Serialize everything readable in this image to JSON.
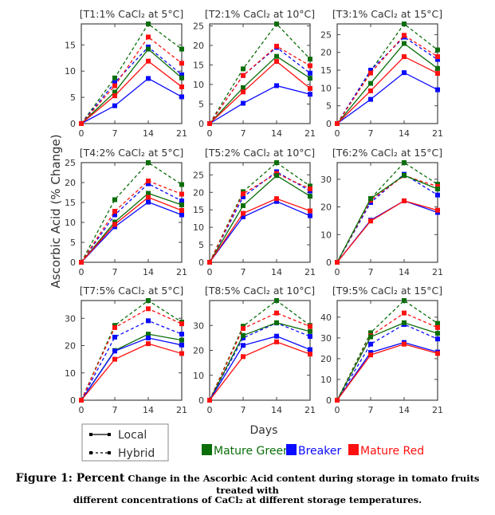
{
  "chart_data": {
    "type": "line",
    "ylabel": "Ascorbic Acid (% Change)",
    "xlabel": "Days",
    "x": [
      0,
      7,
      14,
      21
    ],
    "x_ticks": [
      "0",
      "7",
      "14",
      "21"
    ],
    "legend_styles": [
      {
        "name": "Local",
        "dash": false
      },
      {
        "name": "Hybrid",
        "dash": true
      }
    ],
    "legend_colors": [
      {
        "name": "Mature Green",
        "color": "#0a6e0a"
      },
      {
        "name": "Breaker",
        "color": "#0a0aff"
      },
      {
        "name": "Mature Red",
        "color": "#ff1010"
      }
    ],
    "panels": [
      {
        "title": "[T1:1% CaCl₂ at 5°C]",
        "ylim": [
          0,
          19
        ],
        "yticks": [
          0,
          5,
          10,
          15
        ],
        "local": {
          "Mature Green": [
            0,
            6,
            14.2,
            8.7
          ],
          "Breaker": [
            0,
            3.4,
            8.6,
            5.1
          ],
          "Mature Red": [
            0,
            5.3,
            11.9,
            7
          ]
        },
        "hybrid": {
          "Mature Green": [
            0,
            8.7,
            19,
            14.2
          ],
          "Breaker": [
            0,
            7.8,
            14.6,
            9.3
          ],
          "Mature Red": [
            0,
            7.2,
            16.5,
            11.5
          ]
        }
      },
      {
        "title": "[T2:1% CaCl₂ at 10°C]",
        "ylim": [
          0,
          25.5
        ],
        "yticks": [
          0,
          5,
          10,
          15,
          20,
          25
        ],
        "local": {
          "Mature Green": [
            0,
            9.2,
            17.2,
            11.6
          ],
          "Breaker": [
            0,
            5.2,
            9.7,
            7.5
          ],
          "Mature Red": [
            0,
            8.1,
            15.9,
            9
          ]
        },
        "hybrid": {
          "Mature Green": [
            0,
            14,
            25.5,
            16.5
          ],
          "Breaker": [
            0,
            12.3,
            19.5,
            12.9
          ],
          "Mature Red": [
            0,
            12.3,
            19.8,
            14.8
          ]
        }
      },
      {
        "title": "[T3:1% CaCl₂ at 15°C]",
        "ylim": [
          0,
          28
        ],
        "yticks": [
          0,
          5,
          10,
          15,
          20,
          25
        ],
        "local": {
          "Mature Green": [
            0,
            11.3,
            22.5,
            15.5
          ],
          "Breaker": [
            0,
            6.8,
            14.3,
            9.5
          ],
          "Mature Red": [
            0,
            9.2,
            18.8,
            14.1
          ]
        },
        "hybrid": {
          "Mature Green": [
            0,
            14.8,
            28,
            20.7
          ],
          "Breaker": [
            0,
            15,
            24.3,
            18
          ],
          "Mature Red": [
            0,
            14.2,
            24.8,
            18.8
          ]
        }
      },
      {
        "title": "[T4:2% CaCl₂ at 5°C]",
        "ylim": [
          0,
          25
        ],
        "yticks": [
          0,
          5,
          10,
          15,
          20,
          25
        ],
        "local": {
          "Mature Green": [
            0,
            10.1,
            17.3,
            14.4
          ],
          "Breaker": [
            0,
            8.9,
            15.1,
            11.9
          ],
          "Mature Red": [
            0,
            9.5,
            16.3,
            13
          ]
        },
        "hybrid": {
          "Mature Green": [
            0,
            15.7,
            25,
            19.5
          ],
          "Breaker": [
            0,
            11.9,
            19.7,
            15.4
          ],
          "Mature Red": [
            0,
            12.8,
            20.4,
            17.1
          ]
        }
      },
      {
        "title": "[T5:2% CaCl₂ at 10°C]",
        "ylim": [
          0,
          28.5
        ],
        "yticks": [
          0,
          5,
          10,
          15,
          20,
          25
        ],
        "local": {
          "Mature Green": [
            0,
            16.2,
            24.8,
            18.9
          ],
          "Breaker": [
            0,
            13,
            17.4,
            13.3
          ],
          "Mature Red": [
            0,
            14,
            18.2,
            14.7
          ]
        },
        "hybrid": {
          "Mature Green": [
            0,
            20.2,
            28.5,
            21.8
          ],
          "Breaker": [
            0,
            18.7,
            25.9,
            20.4
          ],
          "Mature Red": [
            0,
            19.6,
            25.4,
            21
          ]
        }
      },
      {
        "title": "[T6:2% CaCl₂ at 15°C]",
        "ylim": [
          0,
          36
        ],
        "yticks": [
          0,
          10,
          20,
          30
        ],
        "local": {
          "Mature Green": [
            0,
            23,
            31.4,
            26.5
          ],
          "Breaker": [
            0,
            15.2,
            22.2,
            18
          ],
          "Mature Red": [
            0,
            14.9,
            22.2,
            18.8
          ]
        },
        "hybrid": {
          "Mature Green": [
            0,
            23,
            36,
            28.2
          ],
          "Breaker": [
            0,
            21.6,
            31.8,
            24.3
          ],
          "Mature Red": [
            0,
            22.4,
            31.3,
            27.4
          ]
        }
      },
      {
        "title": "[T7:5% CaCl₂ at 5°C]",
        "ylim": [
          0,
          36.5
        ],
        "yticks": [
          0,
          10,
          20,
          30
        ],
        "local": {
          "Mature Green": [
            0,
            18.2,
            24.2,
            22
          ],
          "Breaker": [
            0,
            18,
            22.8,
            20.2
          ],
          "Mature Red": [
            0,
            15,
            20.7,
            17.1
          ]
        },
        "hybrid": {
          "Mature Green": [
            0,
            27.4,
            36.5,
            28.6
          ],
          "Breaker": [
            0,
            23.1,
            29.1,
            24.2
          ],
          "Mature Red": [
            0,
            26.6,
            33.5,
            28
          ]
        }
      },
      {
        "title": "[T8:5% CaCl₂ at 10°C]",
        "ylim": [
          0,
          40
        ],
        "yticks": [
          0,
          10,
          20,
          30
        ],
        "local": {
          "Mature Green": [
            0,
            26,
            31.1,
            27.6
          ],
          "Breaker": [
            0,
            22,
            25.7,
            20.3
          ],
          "Mature Red": [
            0,
            17.5,
            23.4,
            18.5
          ]
        },
        "hybrid": {
          "Mature Green": [
            0,
            29.7,
            40,
            30
          ],
          "Breaker": [
            0,
            25,
            31,
            25.6
          ],
          "Mature Red": [
            0,
            28.8,
            35,
            29.6
          ]
        }
      },
      {
        "title": "[T9:5% CaCl₂ at 15°C]",
        "ylim": [
          0,
          48
        ],
        "yticks": [
          0,
          10,
          20,
          30,
          40
        ],
        "local": {
          "Mature Green": [
            0,
            30.5,
            37.3,
            32.2
          ],
          "Breaker": [
            0,
            23,
            27.8,
            23.2
          ],
          "Mature Red": [
            0,
            21.8,
            27,
            22.5
          ]
        },
        "hybrid": {
          "Mature Green": [
            0,
            32.5,
            48,
            37
          ],
          "Breaker": [
            0,
            27,
            36.5,
            29.5
          ],
          "Mature Red": [
            0,
            31,
            42,
            35
          ]
        }
      }
    ]
  },
  "caption": {
    "label": "Figure 1: Percent",
    "line1": "Change in the Ascorbic Acid content during storage in tomato  fruits treated with",
    "line2": "different concentrations of CaCl₂ at different storage temperatures."
  }
}
